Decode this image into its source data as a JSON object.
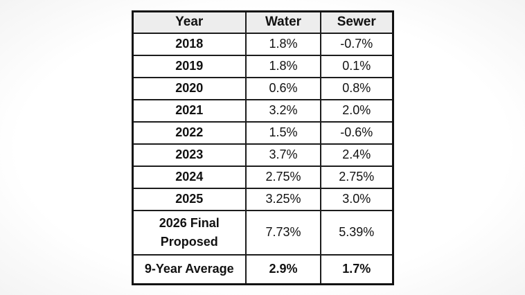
{
  "table": {
    "headers": [
      "Year",
      "Water",
      "Sewer"
    ],
    "rows": [
      [
        "2018",
        "1.8%",
        "-0.7%"
      ],
      [
        "2019",
        "1.8%",
        "0.1%"
      ],
      [
        "2020",
        "0.6%",
        "0.8%"
      ],
      [
        "2021",
        "3.2%",
        "2.0%"
      ],
      [
        "2022",
        "1.5%",
        "-0.6%"
      ],
      [
        "2023",
        "3.7%",
        "2.4%"
      ],
      [
        "2024",
        "2.75%",
        "2.75%"
      ],
      [
        "2025",
        "3.25%",
        "3.0%"
      ],
      [
        "2026 Final Proposed",
        "7.73%",
        "5.39%"
      ],
      [
        "9-Year Average",
        "2.9%",
        "1.7%"
      ]
    ],
    "colors": {
      "header_bg": "#ededed",
      "border": "#1c1c1c",
      "text": "#111111",
      "cell_bg": "#ffffff"
    }
  },
  "chart_data": {
    "type": "table",
    "title": "",
    "columns": [
      "Year",
      "Water",
      "Sewer"
    ],
    "categories": [
      "2018",
      "2019",
      "2020",
      "2021",
      "2022",
      "2023",
      "2024",
      "2025",
      "2026 Final Proposed",
      "9-Year Average"
    ],
    "series": [
      {
        "name": "Water",
        "values": [
          1.8,
          1.8,
          0.6,
          3.2,
          1.5,
          3.7,
          2.75,
          3.25,
          7.73,
          2.9
        ],
        "unit": "%"
      },
      {
        "name": "Sewer",
        "values": [
          -0.7,
          0.1,
          0.8,
          2.0,
          -0.6,
          2.4,
          2.75,
          3.0,
          5.39,
          1.7
        ],
        "unit": "%"
      }
    ]
  }
}
